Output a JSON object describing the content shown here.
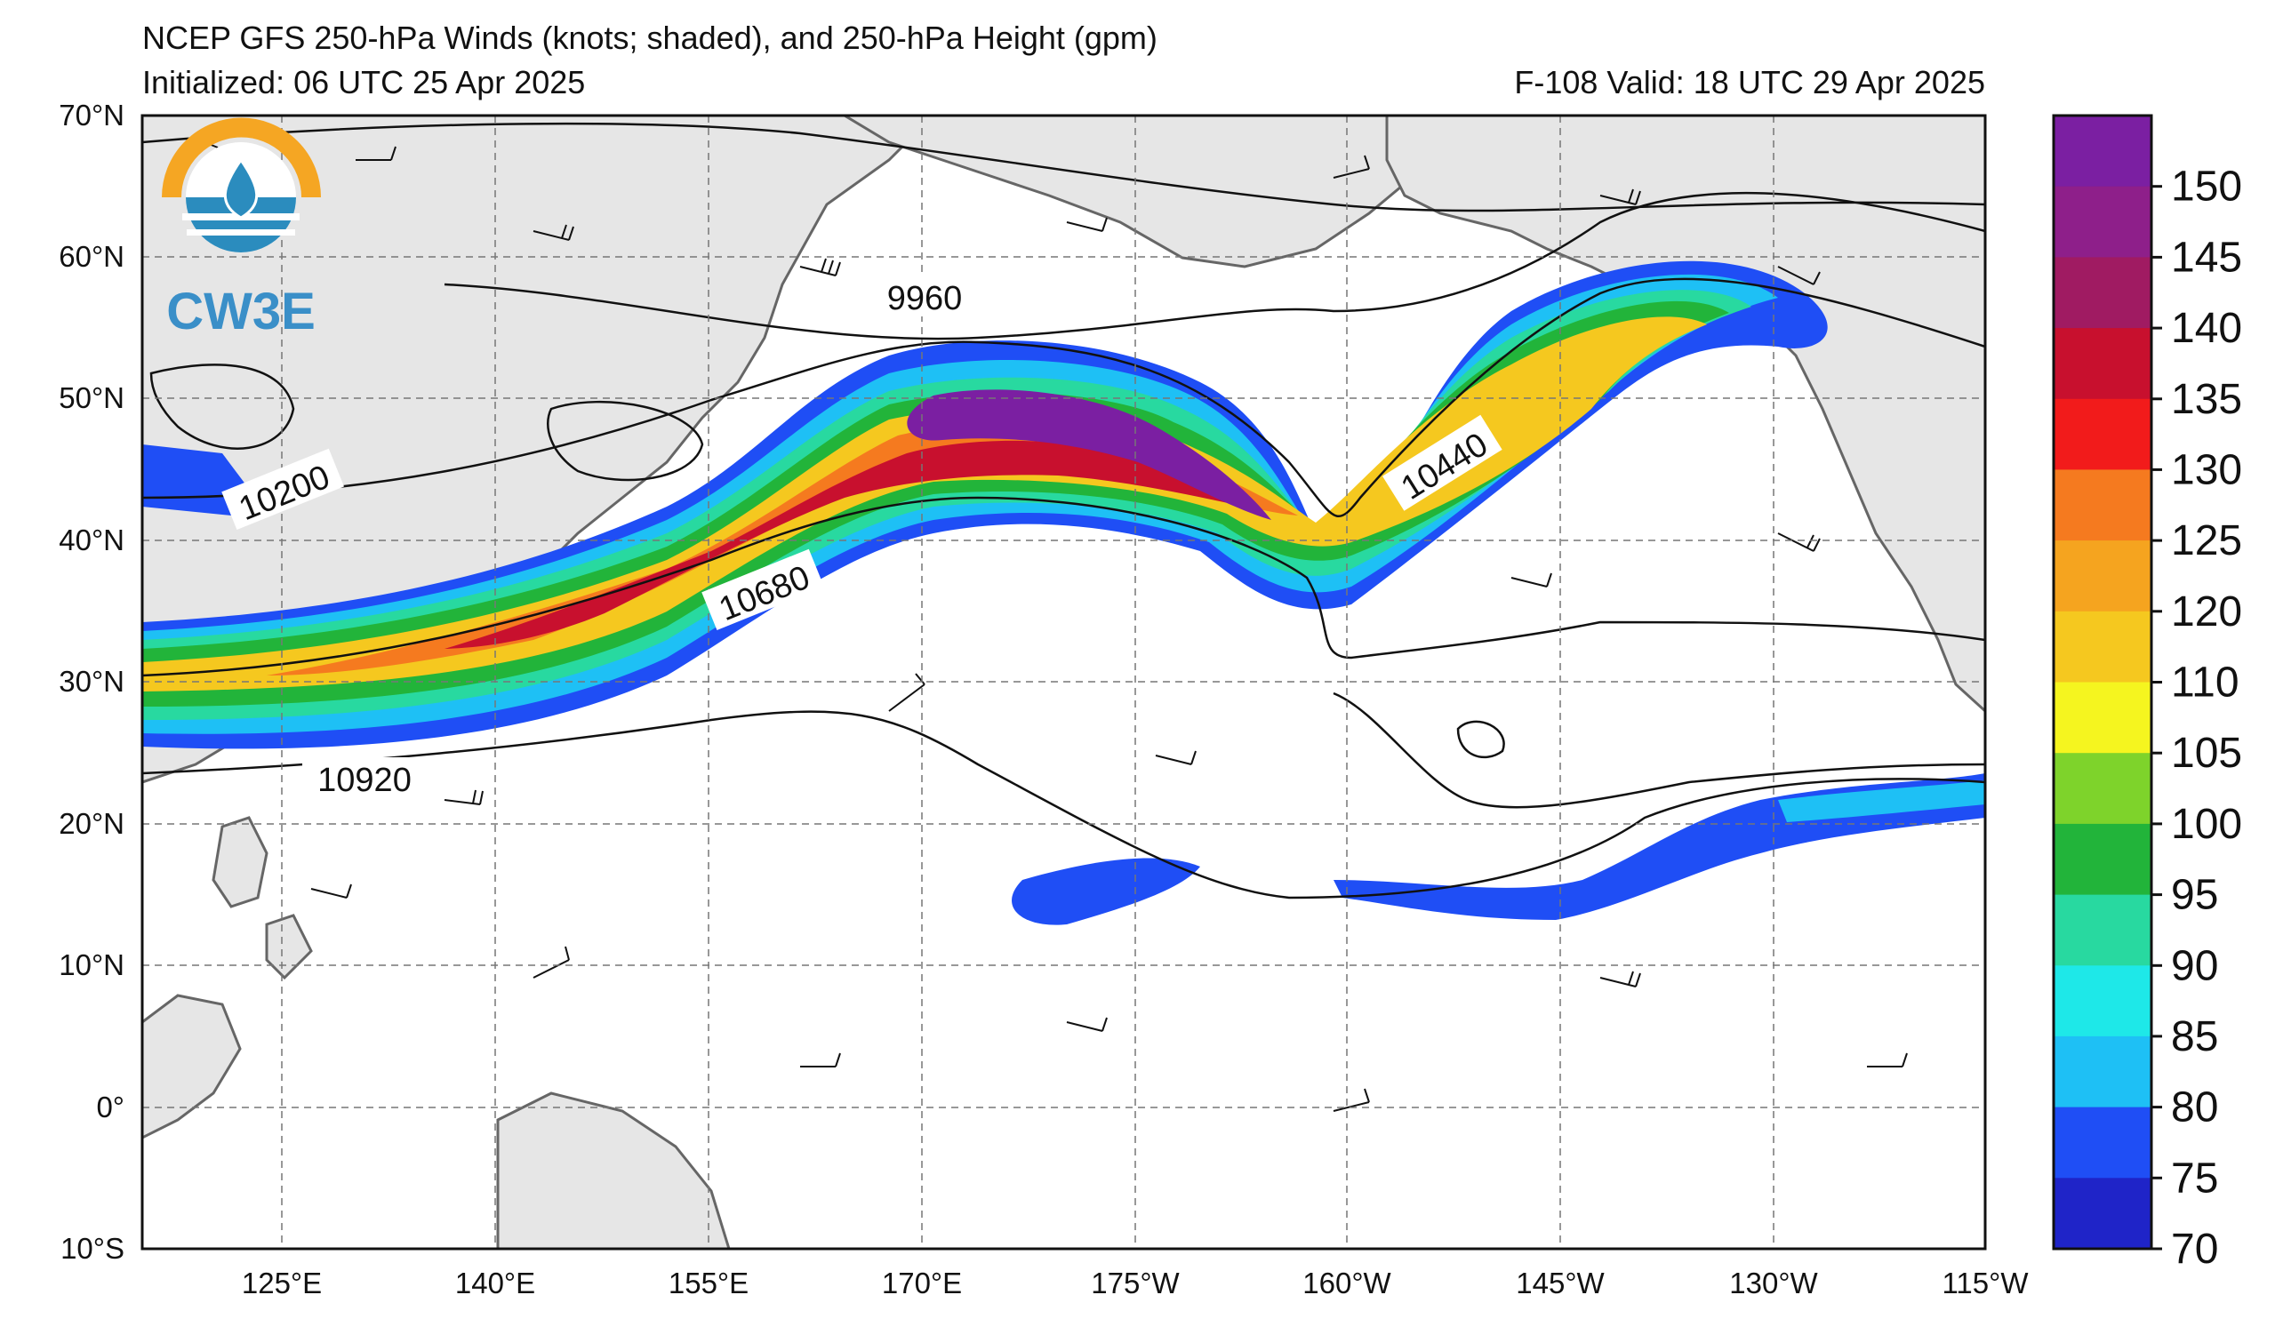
{
  "header": {
    "title": "NCEP GFS 250-hPa Winds (knots; shaded), and 250-hPa Height (gpm)",
    "initialized": "Initialized: 06 UTC 25 Apr 2025",
    "valid": "F-108  Valid: 18 UTC 29 Apr 2025"
  },
  "logo": {
    "text": "CW3E",
    "colors": {
      "ring": "#f5a623",
      "water": "#2b8cbe",
      "text": "#3a8fc8"
    }
  },
  "axes": {
    "lat_labels": [
      "70°N",
      "60°N",
      "50°N",
      "40°N",
      "30°N",
      "20°N",
      "10°N",
      "0°",
      "10°S"
    ],
    "lon_labels": [
      "125°E",
      "140°E",
      "155°E",
      "170°E",
      "175°W",
      "160°W",
      "145°W",
      "130°W",
      "115°W"
    ]
  },
  "contour_labels": [
    "9960",
    "10200",
    "10440",
    "10680",
    "10920"
  ],
  "colorbar": {
    "labels": [
      "150",
      "145",
      "140",
      "135",
      "130",
      "125",
      "120",
      "110",
      "105",
      "100",
      "95",
      "90",
      "85",
      "80",
      "75",
      "70"
    ],
    "colors": [
      "#7b1fa2",
      "#8e1f8a",
      "#a01b62",
      "#c8102e",
      "#f21b1b",
      "#f57a1f",
      "#f5a41f",
      "#f5c81f",
      "#f5f51f",
      "#7ed32b",
      "#22b43a",
      "#28d9a0",
      "#1ee8e8",
      "#1ec0f5",
      "#1f4ef5",
      "#1f24c8"
    ]
  }
}
